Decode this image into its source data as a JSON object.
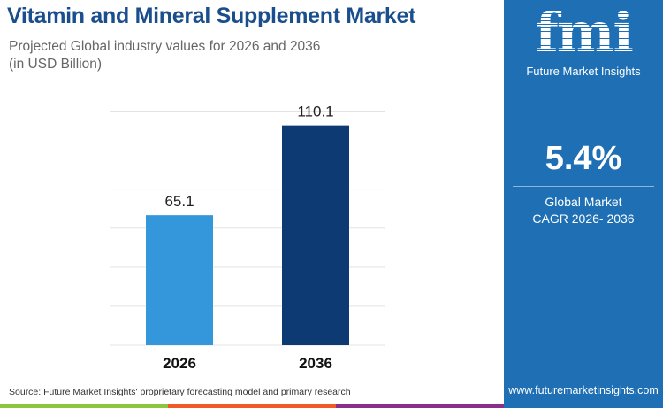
{
  "title": "Vitamin and Mineral Supplement Market",
  "subtitle_line1": "Projected Global industry values for 2026 and 2036",
  "subtitle_line2": "(in USD Billion)",
  "chart_data": {
    "type": "bar",
    "categories": [
      "2026",
      "2036"
    ],
    "values": [
      65.1,
      110.1
    ],
    "data_labels": [
      "65.1",
      "110.1"
    ],
    "colors": [
      "#3497dc",
      "#0e3a73"
    ],
    "ylim": [
      0,
      129
    ],
    "grid": true
  },
  "side": {
    "logo": "fmi",
    "brand": "Future Market Insights",
    "cagr": "5.4%",
    "cagr_label_1": "Global Market",
    "cagr_label_2": "CAGR 2026- 2036",
    "url": "www.futuremarketinsights.com",
    "background": "#1e6fb3"
  },
  "source": "Source: Future Market Insights' proprietary forecasting model and primary research",
  "stripe_colors": [
    "#8cc63f",
    "#ef5a28",
    "#8a2f8a"
  ]
}
